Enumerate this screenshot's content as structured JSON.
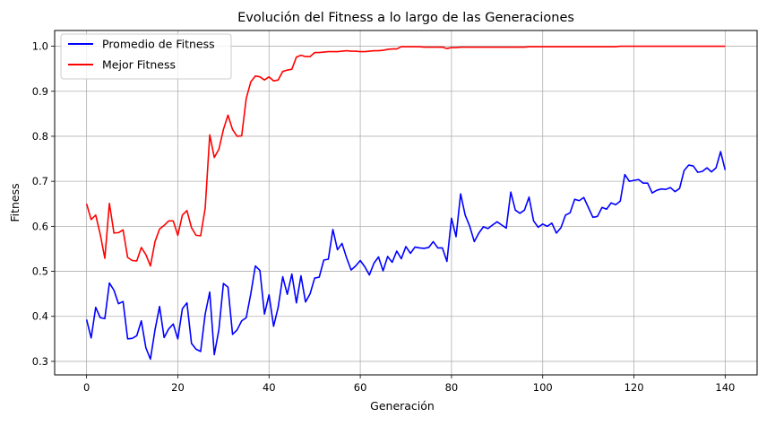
{
  "chart_data": {
    "type": "line",
    "title": "Evolución del Fitness a lo largo de las Generaciones",
    "xlabel": "Generación",
    "ylabel": "Fitness",
    "xlim": [
      -7,
      147
    ],
    "ylim": [
      0.27,
      1.035
    ],
    "x_ticks": [
      0,
      20,
      40,
      60,
      80,
      100,
      120,
      140
    ],
    "y_ticks": [
      0.3,
      0.4,
      0.5,
      0.6,
      0.7,
      0.8,
      0.9,
      1.0
    ],
    "x_tick_labels": [
      "0",
      "20",
      "40",
      "60",
      "80",
      "100",
      "120",
      "140"
    ],
    "y_tick_labels": [
      "0.3",
      "0.4",
      "0.5",
      "0.6",
      "0.7",
      "0.8",
      "0.9",
      "1.0"
    ],
    "grid": true,
    "legend_position": "top-left",
    "x": [
      0,
      1,
      2,
      3,
      4,
      5,
      6,
      7,
      8,
      9,
      10,
      11,
      12,
      13,
      14,
      15,
      16,
      17,
      18,
      19,
      20,
      21,
      22,
      23,
      24,
      25,
      26,
      27,
      28,
      29,
      30,
      31,
      32,
      33,
      34,
      35,
      36,
      37,
      38,
      39,
      40,
      41,
      42,
      43,
      44,
      45,
      46,
      47,
      48,
      49,
      50,
      51,
      52,
      53,
      54,
      55,
      56,
      57,
      58,
      59,
      60,
      61,
      62,
      63,
      64,
      65,
      66,
      67,
      68,
      69,
      70,
      71,
      72,
      73,
      74,
      75,
      76,
      77,
      78,
      79,
      80,
      81,
      82,
      83,
      84,
      85,
      86,
      87,
      88,
      89,
      90,
      91,
      92,
      93,
      94,
      95,
      96,
      97,
      98,
      99,
      100,
      101,
      102,
      103,
      104,
      105,
      106,
      107,
      108,
      109,
      110,
      111,
      112,
      113,
      114,
      115,
      116,
      117,
      118,
      119,
      120,
      121,
      122,
      123,
      124,
      125,
      126,
      127,
      128,
      129,
      130,
      131,
      132,
      133,
      134,
      135,
      136,
      137,
      138,
      139,
      140
    ],
    "series": [
      {
        "name": "Promedio de Fitness",
        "color": "#0000ff",
        "values": [
          0.393,
          0.352,
          0.42,
          0.397,
          0.395,
          0.474,
          0.458,
          0.428,
          0.433,
          0.35,
          0.351,
          0.357,
          0.39,
          0.33,
          0.305,
          0.37,
          0.422,
          0.353,
          0.372,
          0.383,
          0.35,
          0.417,
          0.43,
          0.34,
          0.327,
          0.322,
          0.405,
          0.454,
          0.315,
          0.37,
          0.473,
          0.465,
          0.36,
          0.37,
          0.39,
          0.397,
          0.45,
          0.512,
          0.502,
          0.405,
          0.448,
          0.378,
          0.42,
          0.488,
          0.449,
          0.494,
          0.43,
          0.49,
          0.432,
          0.45,
          0.485,
          0.487,
          0.525,
          0.527,
          0.593,
          0.548,
          0.562,
          0.53,
          0.503,
          0.512,
          0.524,
          0.51,
          0.492,
          0.518,
          0.532,
          0.501,
          0.533,
          0.52,
          0.545,
          0.528,
          0.555,
          0.54,
          0.554,
          0.552,
          0.551,
          0.553,
          0.566,
          0.552,
          0.552,
          0.522,
          0.618,
          0.577,
          0.672,
          0.625,
          0.6,
          0.566,
          0.585,
          0.599,
          0.595,
          0.603,
          0.61,
          0.603,
          0.596,
          0.676,
          0.636,
          0.629,
          0.636,
          0.665,
          0.612,
          0.598,
          0.605,
          0.6,
          0.607,
          0.585,
          0.597,
          0.625,
          0.63,
          0.66,
          0.657,
          0.664,
          0.642,
          0.62,
          0.622,
          0.642,
          0.638,
          0.652,
          0.648,
          0.656,
          0.715,
          0.7,
          0.702,
          0.704,
          0.696,
          0.696,
          0.674,
          0.68,
          0.683,
          0.682,
          0.686,
          0.677,
          0.684,
          0.724,
          0.736,
          0.734,
          0.72,
          0.722,
          0.73,
          0.721,
          0.73,
          0.766,
          0.725
        ]
      },
      {
        "name": "Mejor Fitness",
        "color": "#ff0000",
        "values": [
          0.65,
          0.615,
          0.625,
          0.582,
          0.529,
          0.651,
          0.585,
          0.586,
          0.592,
          0.531,
          0.524,
          0.523,
          0.553,
          0.537,
          0.512,
          0.566,
          0.594,
          0.602,
          0.612,
          0.612,
          0.58,
          0.625,
          0.635,
          0.597,
          0.58,
          0.579,
          0.64,
          0.803,
          0.753,
          0.771,
          0.815,
          0.847,
          0.815,
          0.8,
          0.801,
          0.884,
          0.921,
          0.934,
          0.932,
          0.925,
          0.932,
          0.923,
          0.925,
          0.944,
          0.947,
          0.949,
          0.976,
          0.98,
          0.977,
          0.977,
          0.986,
          0.986,
          0.987,
          0.988,
          0.988,
          0.988,
          0.989,
          0.99,
          0.989,
          0.989,
          0.988,
          0.988,
          0.989,
          0.99,
          0.99,
          0.991,
          0.993,
          0.994,
          0.994,
          0.999,
          0.999,
          0.999,
          0.999,
          0.999,
          0.998,
          0.998,
          0.998,
          0.998,
          0.998,
          0.995,
          0.997,
          0.997,
          0.998,
          0.998,
          0.998,
          0.998,
          0.998,
          0.998,
          0.998,
          0.998,
          0.998,
          0.998,
          0.998,
          0.998,
          0.998,
          0.998,
          0.998,
          0.999,
          0.999,
          0.999,
          0.999,
          0.999,
          0.999,
          0.999,
          0.999,
          0.999,
          0.999,
          0.999,
          0.999,
          0.999,
          0.999,
          0.999,
          0.999,
          0.999,
          0.999,
          0.999,
          0.999,
          1.0,
          1.0,
          1.0,
          1.0,
          1.0,
          1.0,
          1.0,
          1.0,
          1.0,
          1.0,
          1.0,
          1.0,
          1.0,
          1.0,
          1.0,
          1.0,
          1.0,
          1.0,
          1.0,
          1.0,
          1.0,
          1.0,
          1.0,
          1.0
        ]
      }
    ]
  }
}
